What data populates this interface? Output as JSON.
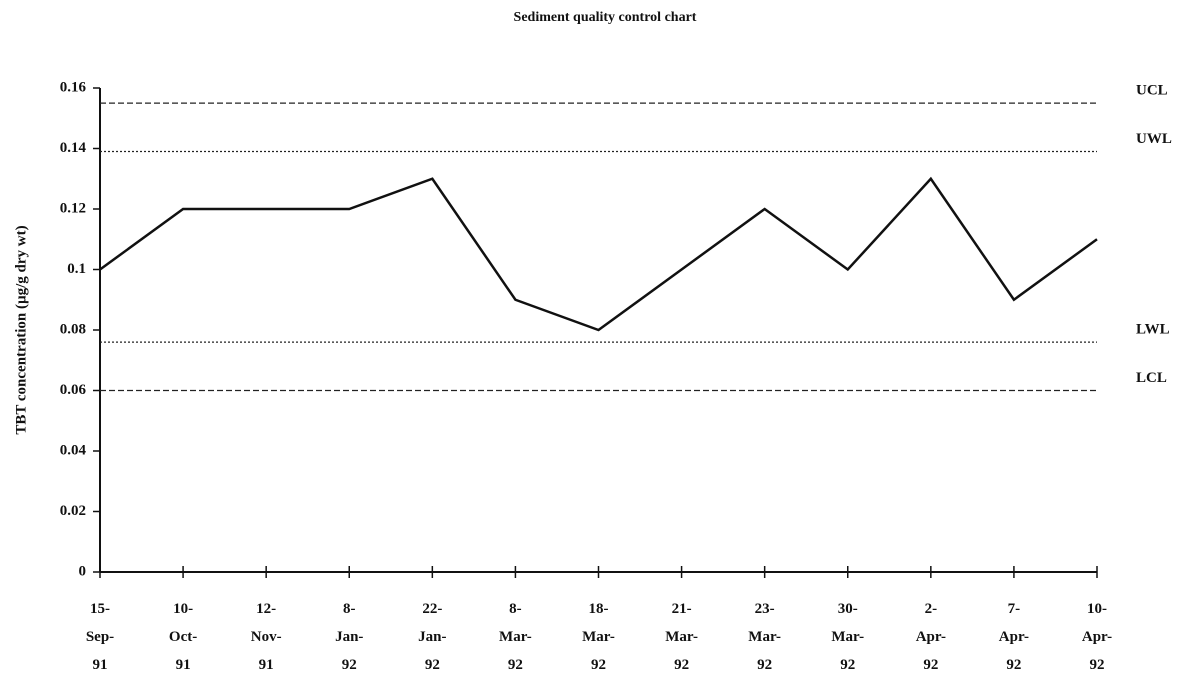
{
  "chart_data": {
    "type": "line",
    "title": "Sediment quality control chart",
    "y_label": "TBT concentration (µg/g dry wt)",
    "categories": [
      "15-Sep-91",
      "10-Oct-91",
      "12-Nov-91",
      "8-Jan-92",
      "22-Jan-92",
      "8-Mar-92",
      "18-Mar-92",
      "21-Mar-92",
      "23-Mar-92",
      "30-Mar-92",
      "2-Apr-92",
      "7-Apr-92",
      "10-Apr-92"
    ],
    "values": [
      0.1,
      0.12,
      0.12,
      0.12,
      0.13,
      0.09,
      0.08,
      0.1,
      0.12,
      0.1,
      0.13,
      0.09,
      0.11
    ],
    "color": "#111111",
    "reference_lines": [
      {
        "label": "UCL",
        "value": 0.155,
        "style": "dashed"
      },
      {
        "label": "UWL",
        "value": 0.139,
        "style": "dotted"
      },
      {
        "label": "LWL",
        "value": 0.076,
        "style": "dotted"
      },
      {
        "label": "LCL",
        "value": 0.06,
        "style": "dashed"
      }
    ],
    "ylim": [
      0,
      0.16
    ],
    "yticks": [
      0,
      0.02,
      0.04,
      0.06,
      0.08,
      0.1,
      0.12,
      0.14,
      0.16
    ],
    "grid": false
  }
}
